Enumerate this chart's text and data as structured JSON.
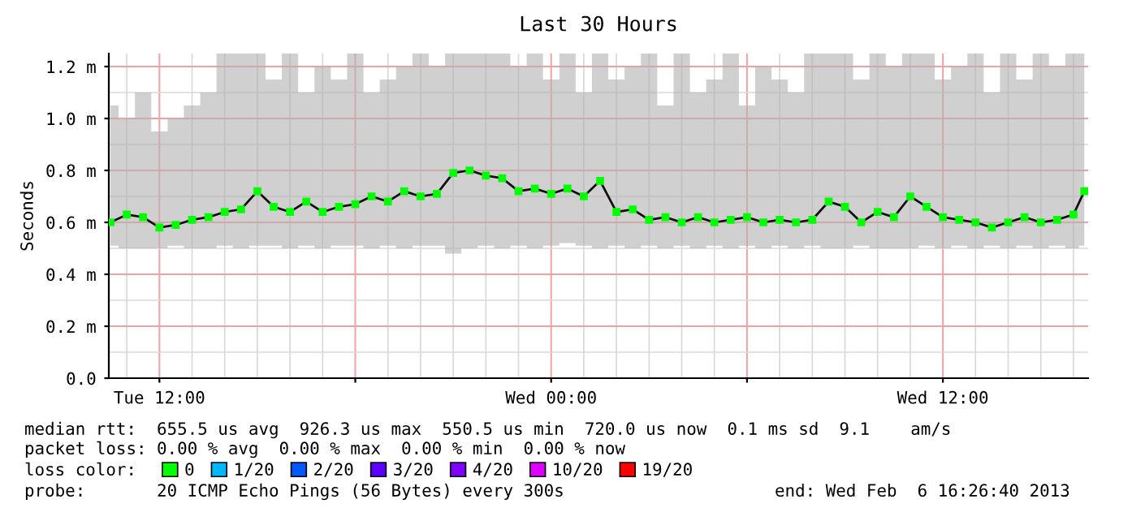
{
  "chart_data": {
    "type": "line",
    "title": "Last 30 Hours",
    "ylabel": "Seconds",
    "x": [
      "2013-02-05T10:30",
      "2013-02-05T11:00",
      "2013-02-05T11:30",
      "2013-02-05T12:00",
      "2013-02-05T12:30",
      "2013-02-05T13:00",
      "2013-02-05T13:30",
      "2013-02-05T14:00",
      "2013-02-05T14:30",
      "2013-02-05T15:00",
      "2013-02-05T15:30",
      "2013-02-05T16:00",
      "2013-02-05T16:30",
      "2013-02-05T17:00",
      "2013-02-05T17:30",
      "2013-02-05T18:00",
      "2013-02-05T18:30",
      "2013-02-05T19:00",
      "2013-02-05T19:30",
      "2013-02-05T20:00",
      "2013-02-05T20:30",
      "2013-02-05T21:00",
      "2013-02-05T21:30",
      "2013-02-05T22:00",
      "2013-02-05T22:30",
      "2013-02-05T23:00",
      "2013-02-05T23:30",
      "2013-02-06T00:00",
      "2013-02-06T00:30",
      "2013-02-06T01:00",
      "2013-02-06T01:30",
      "2013-02-06T02:00",
      "2013-02-06T02:30",
      "2013-02-06T03:00",
      "2013-02-06T03:30",
      "2013-02-06T04:00",
      "2013-02-06T04:30",
      "2013-02-06T05:00",
      "2013-02-06T05:30",
      "2013-02-06T06:00",
      "2013-02-06T06:30",
      "2013-02-06T07:00",
      "2013-02-06T07:30",
      "2013-02-06T08:00",
      "2013-02-06T08:30",
      "2013-02-06T09:00",
      "2013-02-06T09:30",
      "2013-02-06T10:00",
      "2013-02-06T10:30",
      "2013-02-06T11:00",
      "2013-02-06T11:30",
      "2013-02-06T12:00",
      "2013-02-06T12:30",
      "2013-02-06T13:00",
      "2013-02-06T13:30",
      "2013-02-06T14:00",
      "2013-02-06T14:30",
      "2013-02-06T15:00",
      "2013-02-06T15:30",
      "2013-02-06T16:00",
      "2013-02-06T16:20"
    ],
    "series": [
      {
        "name": "0",
        "color": "#00ff00",
        "values": [
          0.6,
          0.63,
          0.62,
          0.58,
          0.59,
          0.61,
          0.62,
          0.64,
          0.65,
          0.72,
          0.66,
          0.64,
          0.68,
          0.64,
          0.66,
          0.67,
          0.7,
          0.68,
          0.72,
          0.7,
          0.71,
          0.79,
          0.8,
          0.78,
          0.77,
          0.72,
          0.73,
          0.71,
          0.73,
          0.7,
          0.76,
          0.64,
          0.65,
          0.61,
          0.62,
          0.6,
          0.62,
          0.6,
          0.61,
          0.62,
          0.6,
          0.61,
          0.6,
          0.61,
          0.68,
          0.66,
          0.6,
          0.64,
          0.62,
          0.7,
          0.66,
          0.62,
          0.61,
          0.6,
          0.58,
          0.6,
          0.62,
          0.6,
          0.61,
          0.63,
          0.72
        ],
        "lower": [
          0.51,
          0.5,
          0.5,
          0.5,
          0.51,
          0.5,
          0.5,
          0.51,
          0.5,
          0.51,
          0.51,
          0.5,
          0.51,
          0.5,
          0.51,
          0.51,
          0.5,
          0.51,
          0.5,
          0.51,
          0.51,
          0.48,
          0.5,
          0.51,
          0.5,
          0.51,
          0.5,
          0.51,
          0.52,
          0.51,
          0.5,
          0.51,
          0.5,
          0.51,
          0.5,
          0.51,
          0.5,
          0.51,
          0.5,
          0.51,
          0.5,
          0.51,
          0.5,
          0.51,
          0.5,
          0.5,
          0.51,
          0.5,
          0.5,
          0.5,
          0.51,
          0.5,
          0.51,
          0.5,
          0.51,
          0.5,
          0.51,
          0.5,
          0.51,
          0.5,
          0.51
        ],
        "upper": [
          1.05,
          1.0,
          1.1,
          0.95,
          1.0,
          1.05,
          1.1,
          1.25,
          1.25,
          1.25,
          1.15,
          1.25,
          1.1,
          1.2,
          1.15,
          1.25,
          1.1,
          1.15,
          1.2,
          1.25,
          1.2,
          1.25,
          1.25,
          1.25,
          1.25,
          1.2,
          1.25,
          1.15,
          1.25,
          1.1,
          1.25,
          1.15,
          1.2,
          1.25,
          1.05,
          1.25,
          1.1,
          1.15,
          1.25,
          1.05,
          1.2,
          1.15,
          1.1,
          1.25,
          1.25,
          1.25,
          1.15,
          1.25,
          1.2,
          1.25,
          1.25,
          1.15,
          1.2,
          1.25,
          1.1,
          1.25,
          1.15,
          1.25,
          1.2,
          1.25,
          1.25
        ]
      },
      {
        "name": "1/20",
        "color": "#00b8ff",
        "values": [
          null,
          null,
          null,
          null,
          null,
          null,
          null,
          null,
          null,
          null,
          null,
          null,
          null,
          null,
          null,
          null,
          null,
          null,
          null,
          null,
          null,
          null,
          null,
          null,
          null,
          null,
          null,
          null,
          null,
          null,
          null,
          null,
          null,
          null,
          null,
          null,
          null,
          null,
          null,
          null,
          null,
          null,
          null,
          null,
          null,
          null,
          null,
          null,
          null,
          null,
          null,
          null,
          null,
          null,
          null,
          null,
          null,
          null,
          null,
          null,
          null
        ]
      },
      {
        "name": "2/20",
        "color": "#0059ff",
        "values": [
          null,
          null,
          null,
          null,
          null,
          null,
          null,
          null,
          null,
          null,
          null,
          null,
          null,
          null,
          null,
          null,
          null,
          null,
          null,
          null,
          null,
          null,
          null,
          null,
          null,
          null,
          null,
          null,
          null,
          null,
          null,
          null,
          null,
          null,
          null,
          null,
          null,
          null,
          null,
          null,
          null,
          null,
          null,
          null,
          null,
          null,
          null,
          null,
          null,
          null,
          null,
          null,
          null,
          null,
          null,
          null,
          null,
          null,
          null,
          null,
          null
        ]
      },
      {
        "name": "3/20",
        "color": "#5e00ff",
        "values": [
          null,
          null,
          null,
          null,
          null,
          null,
          null,
          null,
          null,
          null,
          null,
          null,
          null,
          null,
          null,
          null,
          null,
          null,
          null,
          null,
          null,
          null,
          null,
          null,
          null,
          null,
          null,
          null,
          null,
          null,
          null,
          null,
          null,
          null,
          null,
          null,
          null,
          null,
          null,
          null,
          null,
          null,
          null,
          null,
          null,
          null,
          null,
          null,
          null,
          null,
          null,
          null,
          null,
          null,
          null,
          null,
          null,
          null,
          null,
          null,
          null
        ]
      },
      {
        "name": "4/20",
        "color": "#7e00ff",
        "values": [
          null,
          null,
          null,
          null,
          null,
          null,
          null,
          null,
          null,
          null,
          null,
          null,
          null,
          null,
          null,
          null,
          null,
          null,
          null,
          null,
          null,
          null,
          null,
          null,
          null,
          null,
          null,
          null,
          null,
          null,
          null,
          null,
          null,
          null,
          null,
          null,
          null,
          null,
          null,
          null,
          null,
          null,
          null,
          null,
          null,
          null,
          null,
          null,
          null,
          null,
          null,
          null,
          null,
          null,
          null,
          null,
          null,
          null,
          null,
          null,
          null
        ]
      },
      {
        "name": "10/20",
        "color": "#dd00ff",
        "values": [
          null,
          null,
          null,
          null,
          null,
          null,
          null,
          null,
          null,
          null,
          null,
          null,
          null,
          null,
          null,
          null,
          null,
          null,
          null,
          null,
          null,
          null,
          null,
          null,
          null,
          null,
          null,
          null,
          null,
          null,
          null,
          null,
          null,
          null,
          null,
          null,
          null,
          null,
          null,
          null,
          null,
          null,
          null,
          null,
          null,
          null,
          null,
          null,
          null,
          null,
          null,
          null,
          null,
          null,
          null,
          null,
          null,
          null,
          null,
          null,
          null
        ]
      },
      {
        "name": "19/20",
        "color": "#ff0000",
        "values": [
          null,
          null,
          null,
          null,
          null,
          null,
          null,
          null,
          null,
          null,
          null,
          null,
          null,
          null,
          null,
          null,
          null,
          null,
          null,
          null,
          null,
          null,
          null,
          null,
          null,
          null,
          null,
          null,
          null,
          null,
          null,
          null,
          null,
          null,
          null,
          null,
          null,
          null,
          null,
          null,
          null,
          null,
          null,
          null,
          null,
          null,
          null,
          null,
          null,
          null,
          null,
          null,
          null,
          null,
          null,
          null,
          null,
          null,
          null,
          null,
          null
        ]
      }
    ],
    "xlim": [
      "2013-02-05T10:27",
      "2013-02-06T16:27"
    ],
    "xticks": [
      {
        "value": "2013-02-05T12:00",
        "label": "Tue 12:00"
      },
      {
        "value": "2013-02-05T18:00",
        "label": null
      },
      {
        "value": "2013-02-06T00:00",
        "label": "Wed 00:00"
      },
      {
        "value": "2013-02-06T06:00",
        "label": null
      },
      {
        "value": "2013-02-06T12:00",
        "label": "Wed 12:00"
      }
    ],
    "ylim": [
      0,
      1.25
    ],
    "yticks": [
      {
        "value": 0,
        "label": "0.0"
      },
      {
        "value": 0.2,
        "label": "0.2 m"
      },
      {
        "value": 0.4,
        "label": "0.4 m"
      },
      {
        "value": 0.6,
        "label": "0.6 m"
      },
      {
        "value": 0.8,
        "label": "0.8 m"
      },
      {
        "value": 1.0,
        "label": "1.0 m"
      },
      {
        "value": 1.2,
        "label": "1.2 m"
      }
    ],
    "grid": true,
    "marker": "square",
    "legend": "bottom",
    "legend_title": "loss color:",
    "annotations": [
      "median rtt:  655.5 us avg  926.3 us max  550.5 us min  720.0 us now  0.1 ms sd  9.1    am/s",
      "packet loss: 0.00 % avg  0.00 % max  0.00 % min  0.00 % now",
      "probe:       20 ICMP Echo Pings (56 Bytes) every 300s",
      "end: Wed Feb  6 16:26:40 2013"
    ]
  }
}
